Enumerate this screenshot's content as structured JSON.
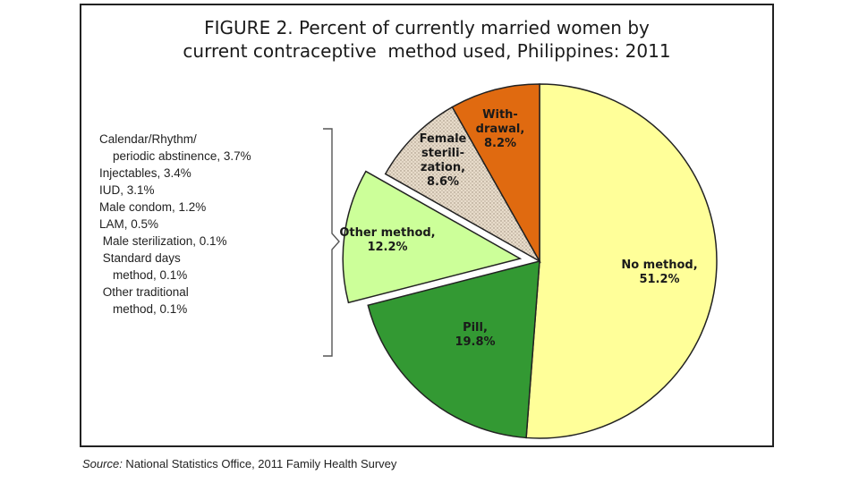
{
  "chart_data": {
    "type": "pie",
    "title": [
      "FIGURE 2. Percent of currently married women by",
      "current contraceptive  method used, Philippines: 2011"
    ],
    "slices": [
      {
        "label": [
          "No method,",
          "51.2%"
        ],
        "value": 51.2,
        "color": "#ffff99"
      },
      {
        "label": [
          "Pill,",
          "19.8%"
        ],
        "value": 19.8,
        "color": "#339933"
      },
      {
        "label": [
          "Other method,",
          "12.2%"
        ],
        "value": 12.2,
        "color": "#ccff99",
        "exploded": true
      },
      {
        "label": [
          "Female",
          "sterili-",
          "zation,",
          "8.6%"
        ],
        "value": 8.6,
        "color": "#e8dccb",
        "pattern": "dotted"
      },
      {
        "label": [
          "With-",
          "drawal,",
          "8.2%"
        ],
        "value": 8.2,
        "color": "#e06a10"
      }
    ],
    "breakdown_of": "Other method",
    "breakdown": [
      "Calendar/Rhythm/",
      "    periodic abstinence, 3.7%",
      "Injectables, 3.4%",
      "IUD, 3.1%",
      "Male condom, 1.2%",
      "LAM, 0.5%",
      " Male sterilization, 0.1%",
      " Standard days",
      "    method, 0.1%",
      " Other traditional",
      "    method, 0.1%"
    ]
  },
  "source": {
    "label": "Source:",
    "text": " National Statistics Office, 2011 Family Health Survey"
  }
}
